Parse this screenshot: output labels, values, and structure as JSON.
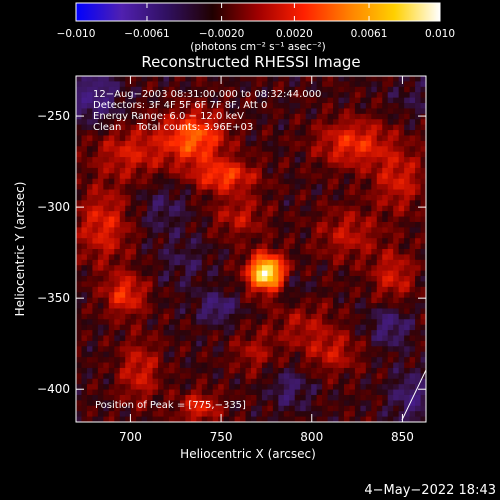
{
  "chart_data": {
    "type": "heatmap",
    "title": "Reconstructed RHESSI Image",
    "xlabel": "Heliocentric X (arcsec)",
    "ylabel": "Heliocentric Y (arcsec)",
    "xlim": [
      670,
      863
    ],
    "ylim": [
      -418,
      -228
    ],
    "x_ticks": [
      700,
      750,
      800,
      850
    ],
    "y_ticks": [
      -250,
      -300,
      -350,
      -400
    ],
    "colorbar": {
      "range": [
        -0.01,
        0.01
      ],
      "tick_values": [
        -0.01,
        -0.0061,
        -0.002,
        0.002,
        0.0061,
        0.01
      ],
      "tick_labels": [
        "−0.010",
        "−0.0061",
        "−0.0020",
        "0.0020",
        "0.0061",
        "0.010"
      ],
      "unit": "(photons cm⁻² s⁻¹ asec⁻²)",
      "colors": [
        "#0000ff",
        "#5020b0",
        "#301060",
        "#200000",
        "#a00000",
        "#ff2000",
        "#ff8000",
        "#ffd000",
        "#ffffff"
      ]
    },
    "annotations": [
      "12−Aug−2003 08:31:00.000 to 08:32:44.000",
      "Detectors: 3F 4F 5F 6F 7F 8F, Att 0",
      "Energy Range: 6.0 − 12.0 keV",
      "Clean",
      "Total counts: 3.96E+03"
    ],
    "peak_label": "Position of Peak = [775,−335]",
    "peak": [
      775,
      -335
    ],
    "features": [
      {
        "x": 775,
        "y": -336,
        "value": 0.01,
        "sx": 7,
        "sy": 7
      },
      {
        "x": 735,
        "y": -262,
        "value": 0.0055,
        "sx": 12,
        "sy": 10
      },
      {
        "x": 752,
        "y": -283,
        "value": 0.0045,
        "sx": 12,
        "sy": 6
      },
      {
        "x": 823,
        "y": -265,
        "value": 0.004,
        "sx": 14,
        "sy": 9
      },
      {
        "x": 848,
        "y": -285,
        "value": 0.003,
        "sx": 10,
        "sy": 12
      },
      {
        "x": 700,
        "y": -270,
        "value": 0.003,
        "sx": 14,
        "sy": 10
      },
      {
        "x": 760,
        "y": -305,
        "value": 0.0025,
        "sx": 10,
        "sy": 8
      },
      {
        "x": 697,
        "y": -348,
        "value": 0.004,
        "sx": 8,
        "sy": 8
      },
      {
        "x": 685,
        "y": -310,
        "value": 0.0035,
        "sx": 10,
        "sy": 14
      },
      {
        "x": 705,
        "y": -390,
        "value": 0.003,
        "sx": 8,
        "sy": 12
      },
      {
        "x": 820,
        "y": -315,
        "value": 0.0025,
        "sx": 12,
        "sy": 10
      },
      {
        "x": 845,
        "y": -338,
        "value": 0.003,
        "sx": 8,
        "sy": 10
      },
      {
        "x": 795,
        "y": -365,
        "value": 0.002,
        "sx": 12,
        "sy": 10
      },
      {
        "x": 812,
        "y": -380,
        "value": 0.0025,
        "sx": 10,
        "sy": 8
      },
      {
        "x": 768,
        "y": -380,
        "value": 0.002,
        "sx": 8,
        "sy": 8
      },
      {
        "x": 738,
        "y": -410,
        "value": 0.0035,
        "sx": 8,
        "sy": 6
      },
      {
        "x": 748,
        "y": -355,
        "value": -0.0025,
        "sx": 8,
        "sy": 6
      },
      {
        "x": 680,
        "y": -240,
        "value": -0.003,
        "sx": 10,
        "sy": 10
      },
      {
        "x": 718,
        "y": -300,
        "value": -0.0015,
        "sx": 10,
        "sy": 10
      },
      {
        "x": 788,
        "y": -400,
        "value": -0.002,
        "sx": 8,
        "sy": 8
      },
      {
        "x": 855,
        "y": -405,
        "value": -0.0025,
        "sx": 8,
        "sy": 10
      },
      {
        "x": 855,
        "y": -240,
        "value": -0.001,
        "sx": 8,
        "sy": 8
      },
      {
        "x": 843,
        "y": -365,
        "value": -0.0025,
        "sx": 8,
        "sy": 8
      },
      {
        "x": 790,
        "y": -345,
        "value": -0.0015,
        "sx": 6,
        "sy": 6
      },
      {
        "x": 730,
        "y": -330,
        "value": -0.0012,
        "sx": 10,
        "sy": 10
      }
    ]
  },
  "footer_timestamp": "4−May−2022 18:43"
}
